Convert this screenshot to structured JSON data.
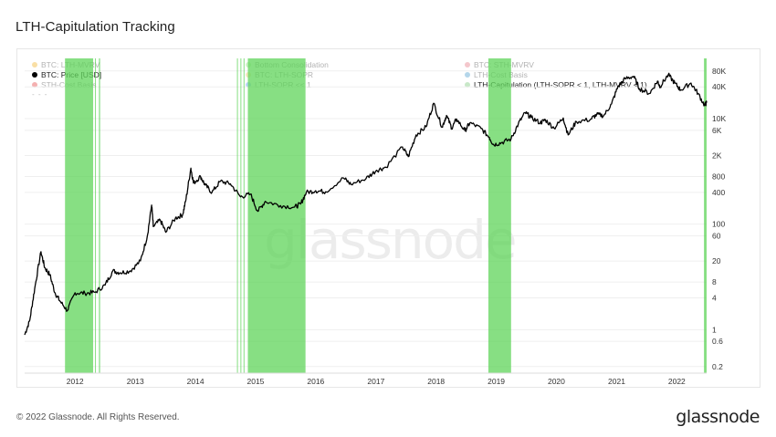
{
  "header": {
    "title": "LTH-Capitulation Tracking"
  },
  "legend": [
    {
      "label": "BTC: LTH-MVRV",
      "color": "#f0a500",
      "faded": true
    },
    {
      "label": "BTC: Price [USD]",
      "color": "#000000",
      "faded": false
    },
    {
      "label": "STH-Cost Basis",
      "color": "#e02020",
      "faded": true
    },
    {
      "label": "Bottom Consolidation",
      "color": "#7dd86a",
      "faded": true
    },
    {
      "label": "BTC: LTH-SOPR",
      "color": "#e8b84a",
      "faded": true
    },
    {
      "label": "LTH-SOPR << 1",
      "color": "#3b82f6",
      "faded": true
    },
    {
      "label": "BTC: STH-MVRV",
      "color": "#e06070",
      "faded": true
    },
    {
      "label": "LTH-Cost Basis",
      "color": "#2a8cc4",
      "faded": true
    },
    {
      "label": "LTH-Capitulation (LTH-SOPR < 1, LTH-MVRV < 1)",
      "color": "#c8e8c8",
      "faded": false
    }
  ],
  "legend_more": "- - -",
  "watermark": "glassnode",
  "footer": {
    "copyright": "© 2022 Glassnode. All Rights Reserved.",
    "logo": "glassnode"
  },
  "colors": {
    "price": "#000000",
    "capitulation": "#5fd45a",
    "grid": "#efefef",
    "axis_text": "#333333"
  },
  "chart_data": {
    "type": "line",
    "title": "LTH-Capitulation Tracking",
    "y_scale": "log",
    "ylim": [
      0.15,
      150000
    ],
    "y_ticks": [
      0.2,
      0.6,
      1,
      4,
      8,
      20,
      60,
      100,
      400,
      800,
      2000,
      6000,
      10000,
      40000,
      80000
    ],
    "y_tick_labels": [
      "0.2",
      "0.6",
      "1",
      "4",
      "8",
      "20",
      "60",
      "100",
      "400",
      "800",
      "2K",
      "6K",
      "10K",
      "40K",
      "80K"
    ],
    "xlim": [
      "2011-03-01",
      "2022-07-01"
    ],
    "x_ticks": [
      "2012",
      "2013",
      "2014",
      "2015",
      "2016",
      "2017",
      "2018",
      "2019",
      "2020",
      "2021",
      "2022"
    ],
    "series": [
      {
        "name": "BTC: Price [USD]",
        "points": [
          [
            "2011-03-01",
            0.8
          ],
          [
            "2011-04-01",
            1.5
          ],
          [
            "2011-05-01",
            6
          ],
          [
            "2011-06-08",
            30
          ],
          [
            "2011-07-01",
            15
          ],
          [
            "2011-08-01",
            11
          ],
          [
            "2011-09-01",
            5
          ],
          [
            "2011-10-01",
            3.5
          ],
          [
            "2011-11-15",
            2.3
          ],
          [
            "2012-01-01",
            5
          ],
          [
            "2012-03-01",
            4.9
          ],
          [
            "2012-05-01",
            5.1
          ],
          [
            "2012-07-01",
            7
          ],
          [
            "2012-08-17",
            13
          ],
          [
            "2012-10-01",
            12
          ],
          [
            "2012-12-01",
            13
          ],
          [
            "2013-02-01",
            20
          ],
          [
            "2013-03-15",
            60
          ],
          [
            "2013-04-10",
            230
          ],
          [
            "2013-04-20",
            90
          ],
          [
            "2013-06-01",
            120
          ],
          [
            "2013-07-05",
            70
          ],
          [
            "2013-09-01",
            130
          ],
          [
            "2013-10-15",
            150
          ],
          [
            "2013-11-05",
            300
          ],
          [
            "2013-12-04",
            1150
          ],
          [
            "2013-12-20",
            600
          ],
          [
            "2014-02-01",
            800
          ],
          [
            "2014-03-01",
            550
          ],
          [
            "2014-04-11",
            400
          ],
          [
            "2014-06-01",
            650
          ],
          [
            "2014-08-01",
            580
          ],
          [
            "2014-10-01",
            330
          ],
          [
            "2014-12-01",
            370
          ],
          [
            "2015-01-14",
            175
          ],
          [
            "2015-03-01",
            270
          ],
          [
            "2015-06-01",
            225
          ],
          [
            "2015-08-25",
            210
          ],
          [
            "2015-10-01",
            240
          ],
          [
            "2015-11-05",
            400
          ],
          [
            "2016-01-01",
            430
          ],
          [
            "2016-03-01",
            410
          ],
          [
            "2016-06-18",
            750
          ],
          [
            "2016-08-01",
            570
          ],
          [
            "2016-11-01",
            730
          ],
          [
            "2017-01-04",
            1050
          ],
          [
            "2017-03-01",
            1200
          ],
          [
            "2017-06-11",
            2900
          ],
          [
            "2017-07-16",
            1900
          ],
          [
            "2017-09-01",
            4900
          ],
          [
            "2017-11-01",
            7000
          ],
          [
            "2017-12-17",
            19500
          ],
          [
            "2018-02-06",
            6900
          ],
          [
            "2018-03-05",
            11500
          ],
          [
            "2018-04-06",
            6600
          ],
          [
            "2018-05-05",
            9800
          ],
          [
            "2018-06-25",
            5900
          ],
          [
            "2018-07-25",
            8300
          ],
          [
            "2018-10-01",
            6500
          ],
          [
            "2018-11-20",
            4400
          ],
          [
            "2018-12-15",
            3200
          ],
          [
            "2019-02-01",
            3500
          ],
          [
            "2019-04-01",
            4100
          ],
          [
            "2019-05-15",
            8000
          ],
          [
            "2019-06-26",
            13000
          ],
          [
            "2019-08-01",
            10500
          ],
          [
            "2019-09-25",
            8300
          ],
          [
            "2019-10-26",
            9500
          ],
          [
            "2019-12-18",
            6600
          ],
          [
            "2020-02-12",
            10300
          ],
          [
            "2020-03-12",
            4900
          ],
          [
            "2020-05-01",
            8800
          ],
          [
            "2020-07-25",
            9600
          ],
          [
            "2020-09-01",
            11900
          ],
          [
            "2020-10-15",
            11400
          ],
          [
            "2020-12-01",
            19000
          ],
          [
            "2021-01-08",
            40000
          ],
          [
            "2021-02-21",
            57000
          ],
          [
            "2021-04-14",
            63500
          ],
          [
            "2021-05-19",
            37000
          ],
          [
            "2021-07-20",
            30000
          ],
          [
            "2021-09-06",
            51500
          ],
          [
            "2021-09-21",
            40500
          ],
          [
            "2021-11-10",
            68000
          ],
          [
            "2021-12-20",
            47000
          ],
          [
            "2022-01-24",
            35000
          ],
          [
            "2022-03-28",
            47000
          ],
          [
            "2022-05-10",
            30000
          ],
          [
            "2022-06-18",
            18000
          ],
          [
            "2022-07-01",
            20000
          ]
        ]
      }
    ],
    "shaded_periods": {
      "name": "LTH-Capitulation (LTH-SOPR < 1, LTH-MVRV < 1)",
      "ranges": [
        [
          "2011-11-01",
          "2012-04-20"
        ],
        [
          "2012-05-01",
          "2012-05-05"
        ],
        [
          "2012-05-25",
          "2012-06-01"
        ],
        [
          "2014-09-10",
          "2014-09-14"
        ],
        [
          "2014-10-01",
          "2014-10-05"
        ],
        [
          "2014-10-20",
          "2014-10-25"
        ],
        [
          "2014-11-15",
          "2015-10-31"
        ],
        [
          "2018-11-14",
          "2019-04-01"
        ],
        [
          "2022-06-15",
          "2022-07-01"
        ]
      ]
    }
  }
}
